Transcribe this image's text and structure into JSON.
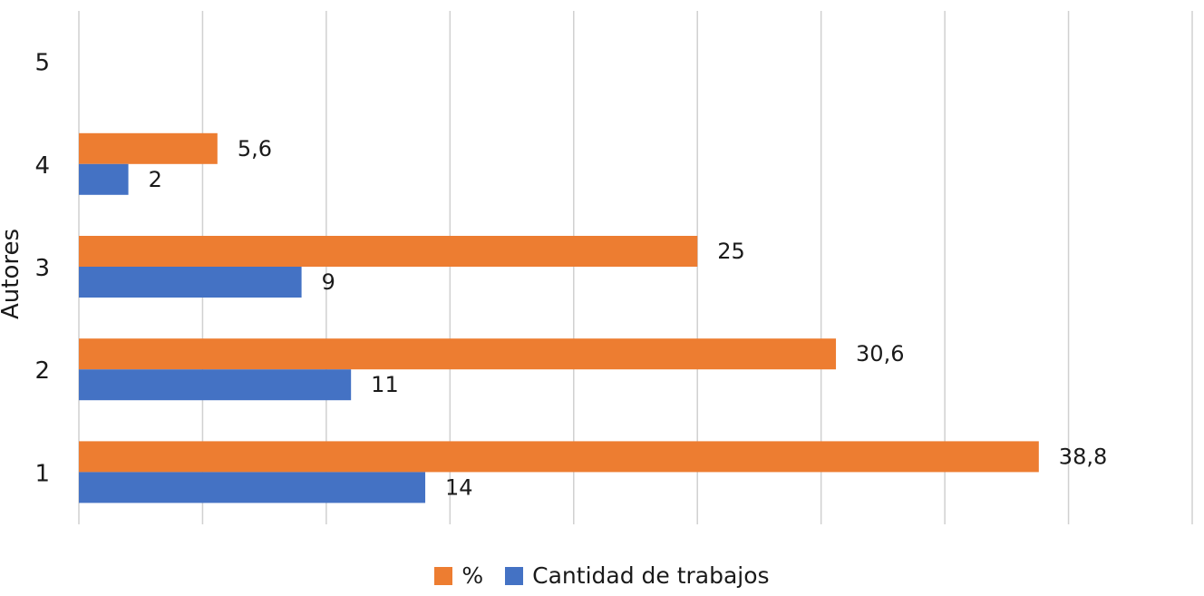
{
  "chart_data": {
    "type": "bar",
    "orientation": "horizontal",
    "categories": [
      "1",
      "2",
      "3",
      "4",
      "5"
    ],
    "ylabel": "Autores",
    "xlabel": "",
    "xlim": [
      0,
      45
    ],
    "grid": true,
    "legend_position": "bottom",
    "series": [
      {
        "name": "%",
        "color": "#ED7D31",
        "values": [
          38.8,
          30.6,
          25,
          5.6,
          null
        ],
        "labels": [
          "38,8",
          "30,6",
          "25",
          "5,6",
          ""
        ]
      },
      {
        "name": "Cantidad de trabajos",
        "color": "#4472C4",
        "values": [
          14,
          11,
          9,
          2,
          null
        ],
        "labels": [
          "14",
          "11",
          "9",
          "2",
          ""
        ]
      }
    ]
  }
}
